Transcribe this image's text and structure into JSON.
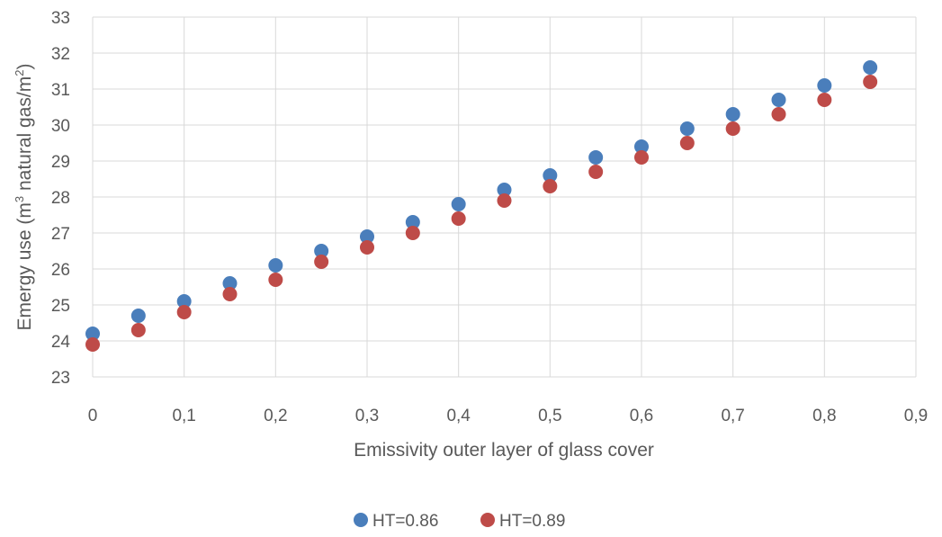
{
  "chart_data": {
    "type": "scatter",
    "title": "",
    "xlabel": "Emissivity outer layer of glass cover",
    "ylabel_parts": [
      "Emergy use (m",
      "3",
      " natural gas/m",
      "2",
      ")"
    ],
    "xlim": [
      0,
      0.9
    ],
    "ylim": [
      23,
      33
    ],
    "x_ticks": [
      "0",
      "0,1",
      "0,2",
      "0,3",
      "0,4",
      "0,5",
      "0,6",
      "0,7",
      "0,8",
      "0,9"
    ],
    "x_tick_values": [
      0,
      0.1,
      0.2,
      0.3,
      0.4,
      0.5,
      0.6,
      0.7,
      0.8,
      0.9
    ],
    "y_ticks": [
      "23",
      "24",
      "25",
      "26",
      "27",
      "28",
      "29",
      "30",
      "31",
      "32",
      "33"
    ],
    "y_tick_values": [
      23,
      24,
      25,
      26,
      27,
      28,
      29,
      30,
      31,
      32,
      33
    ],
    "grid": true,
    "legend_position": "bottom",
    "x": [
      0,
      0.05,
      0.1,
      0.15,
      0.2,
      0.25,
      0.3,
      0.35,
      0.4,
      0.45,
      0.5,
      0.55,
      0.6,
      0.65,
      0.7,
      0.75,
      0.8,
      0.85
    ],
    "series": [
      {
        "name": "HT=0.86",
        "color": "#4a7ebb",
        "values": [
          24.2,
          24.7,
          25.1,
          25.6,
          26.1,
          26.5,
          26.9,
          27.3,
          27.8,
          28.2,
          28.6,
          29.1,
          29.4,
          29.9,
          30.3,
          30.7,
          31.1,
          31.6
        ]
      },
      {
        "name": "HT=0.89",
        "color": "#be4b48",
        "values": [
          23.9,
          24.3,
          24.8,
          25.3,
          25.7,
          26.2,
          26.6,
          27.0,
          27.4,
          27.9,
          28.3,
          28.7,
          29.1,
          29.5,
          29.9,
          30.3,
          30.7,
          31.2
        ]
      }
    ]
  }
}
